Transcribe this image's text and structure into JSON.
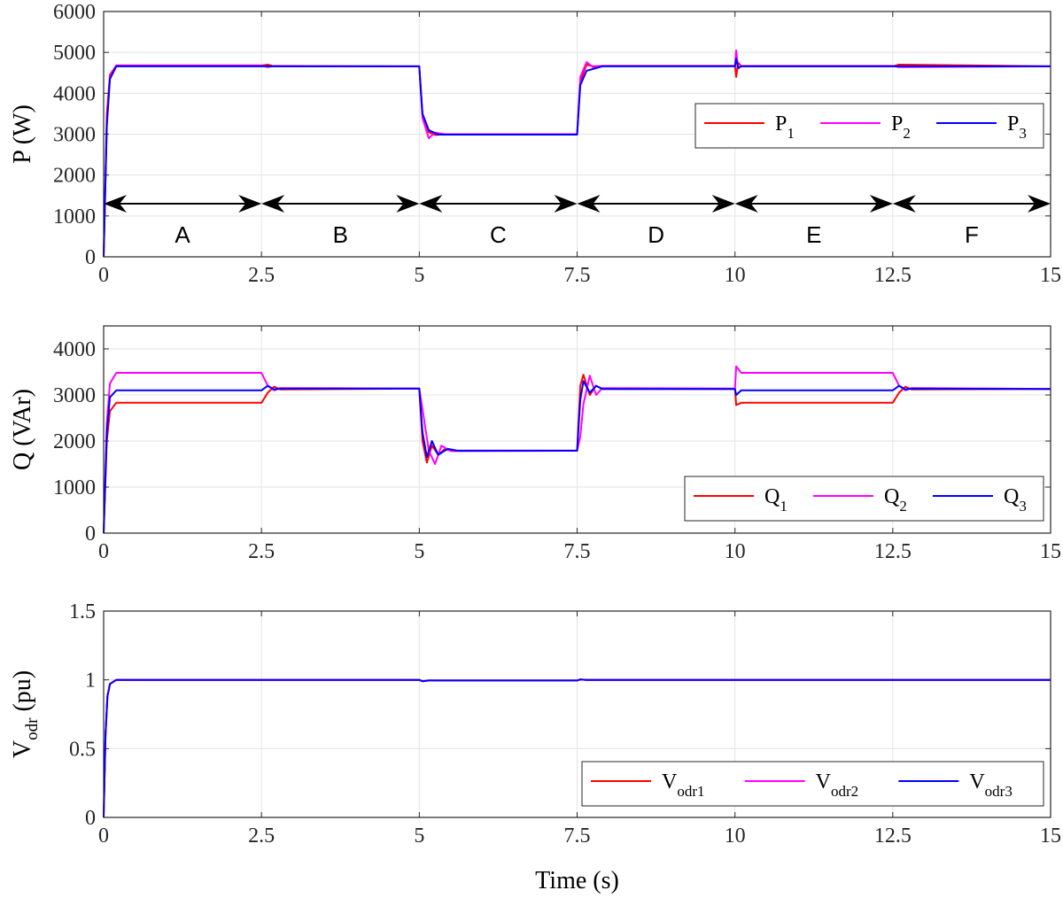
{
  "chart_data": [
    {
      "type": "line",
      "ylabel": "P (W)",
      "xlim": [
        0,
        15
      ],
      "ylim": [
        0,
        6000
      ],
      "xticks": [
        "0",
        "2.5",
        "5",
        "7.5",
        "10",
        "12.5",
        "15"
      ],
      "yticks": [
        "0",
        "1000",
        "2000",
        "3000",
        "4000",
        "5000",
        "6000"
      ],
      "grid": true,
      "legend": "upper-right",
      "series": [
        {
          "name": "P",
          "sub": "1",
          "color": "#ff0000",
          "x": [
            0,
            0.05,
            0.1,
            0.2,
            2.5,
            2.6,
            2.7,
            5.0,
            5.05,
            5.15,
            5.25,
            5.4,
            7.5,
            7.55,
            7.65,
            7.75,
            7.9,
            10.0,
            10.02,
            10.05,
            10.1,
            12.5,
            12.6,
            15
          ],
          "y": [
            0,
            3500,
            4450,
            4680,
            4680,
            4700,
            4660,
            4660,
            3500,
            3050,
            2980,
            3000,
            3000,
            4300,
            4700,
            4660,
            4670,
            4670,
            4400,
            4750,
            4660,
            4660,
            4700,
            4660
          ]
        },
        {
          "name": "P",
          "sub": "2",
          "color": "#ff00ff",
          "x": [
            0,
            0.05,
            0.1,
            0.2,
            2.5,
            2.6,
            2.7,
            5.0,
            5.05,
            5.15,
            5.25,
            5.4,
            7.5,
            7.55,
            7.65,
            7.75,
            7.9,
            10.0,
            10.02,
            10.05,
            10.1,
            12.5,
            12.6,
            15
          ],
          "y": [
            0,
            3300,
            4400,
            4680,
            4680,
            4640,
            4670,
            4660,
            3400,
            2900,
            3040,
            3000,
            3000,
            4400,
            4760,
            4640,
            4670,
            4670,
            5050,
            4600,
            4670,
            4670,
            4640,
            4660
          ]
        },
        {
          "name": "P",
          "sub": "3",
          "color": "#0000ff",
          "x": [
            0,
            0.05,
            0.1,
            0.2,
            2.5,
            5.0,
            5.05,
            5.15,
            5.3,
            7.5,
            7.55,
            7.65,
            7.9,
            10.0,
            10.02,
            10.05,
            10.1,
            15
          ],
          "y": [
            0,
            3200,
            4350,
            4660,
            4660,
            4660,
            3500,
            3100,
            2990,
            2990,
            4200,
            4550,
            4660,
            4660,
            4850,
            4620,
            4660,
            4660
          ]
        }
      ],
      "annotations": {
        "arrow_y": 1300,
        "regions": [
          {
            "label": "A",
            "from": 0,
            "to": 2.5
          },
          {
            "label": "B",
            "from": 2.5,
            "to": 5
          },
          {
            "label": "C",
            "from": 5,
            "to": 7.5
          },
          {
            "label": "D",
            "from": 7.5,
            "to": 10
          },
          {
            "label": "E",
            "from": 10,
            "to": 12.5
          },
          {
            "label": "F",
            "from": 12.5,
            "to": 15
          }
        ]
      }
    },
    {
      "type": "line",
      "ylabel": "Q (VAr)",
      "xlim": [
        0,
        15
      ],
      "ylim": [
        0,
        4500
      ],
      "xticks": [
        "0",
        "2.5",
        "5",
        "7.5",
        "10",
        "12.5",
        "15"
      ],
      "yticks": [
        "0",
        "1000",
        "2000",
        "3000",
        "4000"
      ],
      "grid": true,
      "legend": "lower-right",
      "series": [
        {
          "name": "Q",
          "sub": "1",
          "color": "#ff0000",
          "x": [
            0,
            0.05,
            0.1,
            0.2,
            2.5,
            2.6,
            2.7,
            2.8,
            5.0,
            5.05,
            5.12,
            5.2,
            5.3,
            5.4,
            5.5,
            7.5,
            7.55,
            7.6,
            7.7,
            7.8,
            7.9,
            10.0,
            10.02,
            10.1,
            12.5,
            12.6,
            12.7,
            12.8,
            15
          ],
          "y": [
            0,
            2000,
            2650,
            2830,
            2830,
            3050,
            3180,
            3120,
            3140,
            2000,
            1530,
            1900,
            1700,
            1820,
            1790,
            1790,
            3200,
            3440,
            3000,
            3200,
            3130,
            3130,
            2780,
            2830,
            2830,
            3050,
            3180,
            3120,
            3130
          ]
        },
        {
          "name": "Q",
          "sub": "2",
          "color": "#ff00ff",
          "x": [
            0,
            0.05,
            0.1,
            0.2,
            2.5,
            2.6,
            2.7,
            2.8,
            5.0,
            5.05,
            5.15,
            5.25,
            5.35,
            5.5,
            7.5,
            7.55,
            7.6,
            7.7,
            7.8,
            7.9,
            10.0,
            10.02,
            10.1,
            12.5,
            12.6,
            12.7,
            12.8,
            15
          ],
          "y": [
            0,
            2400,
            3250,
            3480,
            3480,
            3200,
            3100,
            3150,
            3140,
            2700,
            1800,
            1500,
            1900,
            1780,
            1790,
            2100,
            2800,
            3420,
            3000,
            3150,
            3140,
            3620,
            3480,
            3480,
            3200,
            3100,
            3150,
            3130
          ]
        },
        {
          "name": "Q",
          "sub": "3",
          "color": "#0000ff",
          "x": [
            0,
            0.05,
            0.1,
            0.2,
            2.5,
            2.6,
            2.7,
            2.8,
            5.0,
            5.05,
            5.12,
            5.2,
            5.3,
            5.45,
            5.6,
            7.5,
            7.55,
            7.6,
            7.7,
            7.8,
            7.9,
            10.0,
            10.02,
            10.1,
            12.5,
            12.6,
            12.7,
            12.8,
            15
          ],
          "y": [
            0,
            2200,
            2950,
            3100,
            3100,
            3200,
            3120,
            3140,
            3140,
            2200,
            1650,
            2000,
            1700,
            1830,
            1790,
            1790,
            2900,
            3300,
            3050,
            3200,
            3130,
            3130,
            3000,
            3100,
            3100,
            3200,
            3120,
            3140,
            3130
          ]
        }
      ]
    },
    {
      "type": "line",
      "ylabel": "V_odr (pu)",
      "xlabel": "Time (s)",
      "xlim": [
        0,
        15
      ],
      "ylim": [
        0,
        1.5
      ],
      "xticks": [
        "0",
        "2.5",
        "5",
        "7.5",
        "10",
        "12.5",
        "15"
      ],
      "yticks": [
        "0",
        "0.5",
        "1",
        "1.5"
      ],
      "grid": true,
      "legend": "lower-right",
      "series": [
        {
          "name": "V",
          "sub": "odr1",
          "color": "#ff0000",
          "x": [
            0,
            0.03,
            0.06,
            0.1,
            0.2,
            5.0,
            5.05,
            5.15,
            7.5,
            7.55,
            7.65,
            15
          ],
          "y": [
            0,
            0.6,
            0.88,
            0.97,
            1.0,
            1.0,
            0.99,
            0.995,
            0.995,
            1.003,
            1.0,
            1.0
          ]
        },
        {
          "name": "V",
          "sub": "odr2",
          "color": "#ff00ff",
          "x": [
            0,
            0.03,
            0.06,
            0.1,
            0.2,
            5.0,
            5.05,
            5.15,
            7.5,
            7.55,
            7.65,
            15
          ],
          "y": [
            0,
            0.6,
            0.88,
            0.97,
            1.0,
            1.0,
            0.99,
            0.995,
            0.995,
            1.003,
            1.0,
            1.0
          ]
        },
        {
          "name": "V",
          "sub": "odr3",
          "color": "#0000ff",
          "x": [
            0,
            0.03,
            0.06,
            0.1,
            0.2,
            5.0,
            5.05,
            5.15,
            7.5,
            7.55,
            7.65,
            15
          ],
          "y": [
            0,
            0.6,
            0.88,
            0.97,
            1.0,
            1.0,
            0.99,
            0.995,
            0.995,
            1.003,
            1.0,
            1.0
          ]
        }
      ]
    }
  ]
}
